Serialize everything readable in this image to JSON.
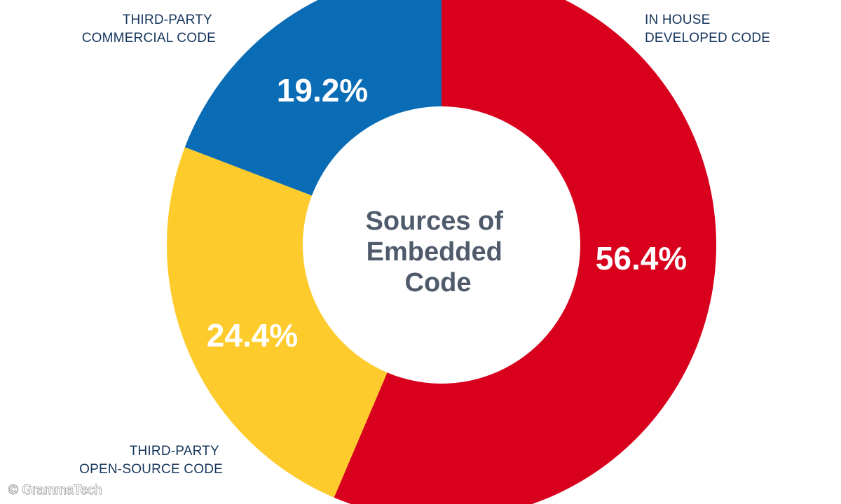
{
  "chart_data": {
    "type": "pie",
    "title": "Sources of Embedded Code",
    "title_lines": [
      "Sources of",
      "Embedded",
      "Code"
    ],
    "donut": true,
    "slices": [
      {
        "label_lines": [
          "IN HOUSE",
          "DEVELOPED CODE"
        ],
        "value": 56.4,
        "value_label": "56.4%",
        "color": "#d8001c"
      },
      {
        "label_lines": [
          "THIRD-PARTY",
          "OPEN-SOURCE CODE"
        ],
        "value": 24.4,
        "value_label": "24.4%",
        "color": "#fdcb2c"
      },
      {
        "label_lines": [
          "THIRD-PARTY",
          "COMMERCIAL CODE"
        ],
        "value": 19.2,
        "value_label": "19.2%",
        "color": "#0a6cb5"
      }
    ],
    "start": "top",
    "direction": "clockwise"
  },
  "credit": "© GrammaTech"
}
